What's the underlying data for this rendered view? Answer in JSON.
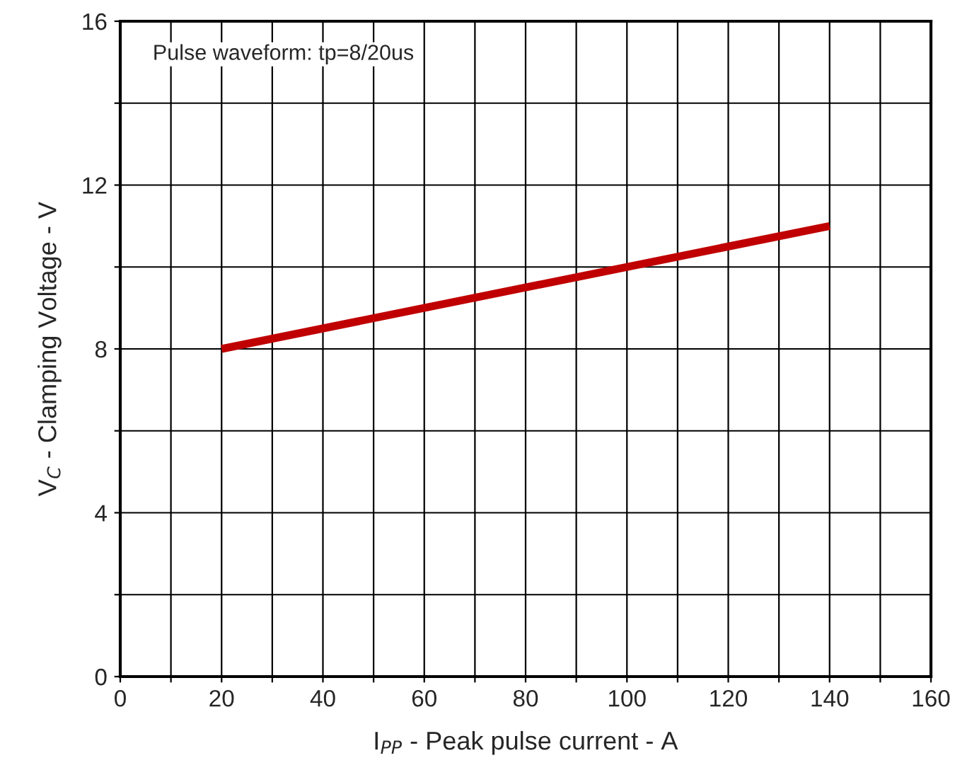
{
  "chart_data": {
    "type": "line",
    "x": [
      20,
      140
    ],
    "series": [
      {
        "color": "#c00000",
        "values": [
          8,
          11
        ]
      }
    ],
    "xlabel": "I$_{PP}$ - Peak pulse current - A",
    "ylabel": "V$_{C}$ - Clamping Voltage - V",
    "annotations": [
      "Pulse waveform: tp=8/20us"
    ],
    "xlim": [
      0,
      160
    ],
    "ylim": [
      0,
      16
    ],
    "xticks": [
      0,
      {
        "value": 10,
        "label": null
      },
      20,
      {
        "value": 30,
        "label": null
      },
      40,
      {
        "value": 50,
        "label": null
      },
      60,
      {
        "value": 70,
        "label": null
      },
      80,
      {
        "value": 90,
        "label": null
      },
      100,
      {
        "value": 110,
        "label": null
      },
      120,
      {
        "value": 130,
        "label": null
      },
      140,
      {
        "value": 150,
        "label": null
      },
      160
    ],
    "yticks": [
      0,
      {
        "value": 2,
        "label": null
      },
      4,
      {
        "value": 6,
        "label": null
      },
      8,
      {
        "value": 10,
        "label": null
      },
      12,
      {
        "value": 14,
        "label": null
      },
      16
    ],
    "grid": true,
    "line_style": "solid"
  }
}
